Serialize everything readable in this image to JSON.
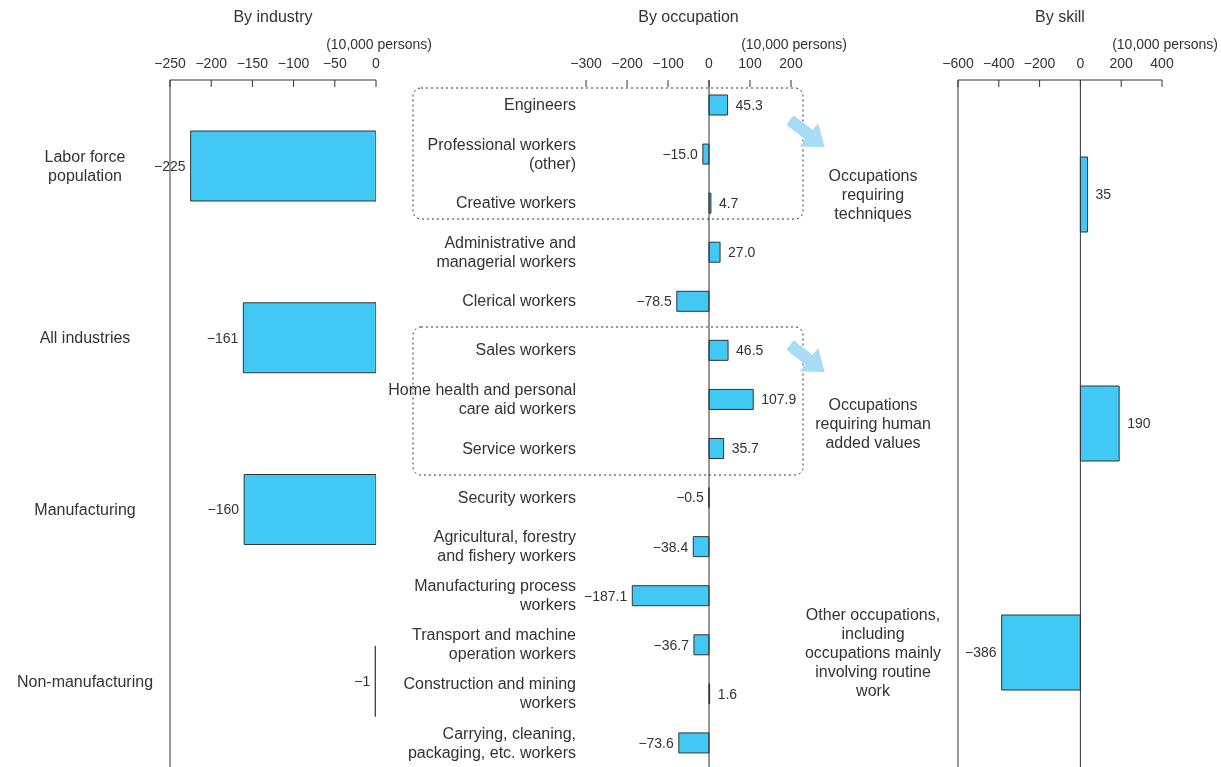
{
  "chart_data": [
    {
      "type": "bar",
      "orientation": "horizontal",
      "title": "By industry",
      "xlabel": "(10,000 persons)",
      "categories": [
        "Labor force population",
        "All industries",
        "Manufacturing",
        "Non-manufacturing"
      ],
      "values": [
        -225,
        -161,
        -160,
        -1
      ],
      "value_labels": [
        "−225",
        "−161",
        "−160",
        "−1"
      ],
      "color": "#42c8f4",
      "xlim": [
        -250,
        0
      ],
      "xticks": [
        -250,
        -200,
        -150,
        -100,
        -50,
        0
      ],
      "grid": false
    },
    {
      "type": "bar",
      "orientation": "horizontal",
      "title": "By occupation",
      "xlabel": "(10,000 persons)",
      "categories": [
        "Engineers",
        "Professional workers (other)",
        "Creative workers",
        "Administrative and managerial workers",
        "Clerical workers",
        "Sales workers",
        "Home health and personal care aid workers",
        "Service workers",
        "Security workers",
        "Agricultural, forestry and fishery workers",
        "Manufacturing process workers",
        "Transport and machine operation workers",
        "Construction and mining workers",
        "Carrying, cleaning, packaging, etc. workers"
      ],
      "values": [
        45.3,
        -15.0,
        4.7,
        27.0,
        -78.5,
        46.5,
        107.9,
        35.7,
        -0.5,
        -38.4,
        -187.1,
        -36.7,
        1.6,
        -73.6
      ],
      "value_labels": [
        "45.3",
        "−15.0",
        "4.7",
        "27.0",
        "−78.5",
        "46.5",
        "107.9",
        "35.7",
        "−0.5",
        "−38.4",
        "−187.1",
        "−36.7",
        "1.6",
        "−73.6"
      ],
      "color": "#42c8f4",
      "xlim": [
        -300,
        200
      ],
      "xticks": [
        -300,
        -200,
        -100,
        0,
        100,
        200
      ],
      "grid": false,
      "ref_lines": [
        {
          "axis": "x",
          "value": 0
        }
      ]
    },
    {
      "type": "bar",
      "orientation": "horizontal",
      "title": "By skill",
      "xlabel": "(10,000 persons)",
      "categories": [
        "Occupations requiring techniques",
        "Occupations requiring human added values",
        "Other occupations, including occupations mainly involving routine work"
      ],
      "values": [
        35,
        190,
        -386
      ],
      "value_labels": [
        "35",
        "190",
        "−386"
      ],
      "color": "#42c8f4",
      "xlim": [
        -600,
        400
      ],
      "xticks": [
        -600,
        -400,
        -200,
        0,
        200,
        400
      ],
      "grid": false,
      "ref_lines": [
        {
          "axis": "x",
          "value": 0
        }
      ]
    }
  ]
}
